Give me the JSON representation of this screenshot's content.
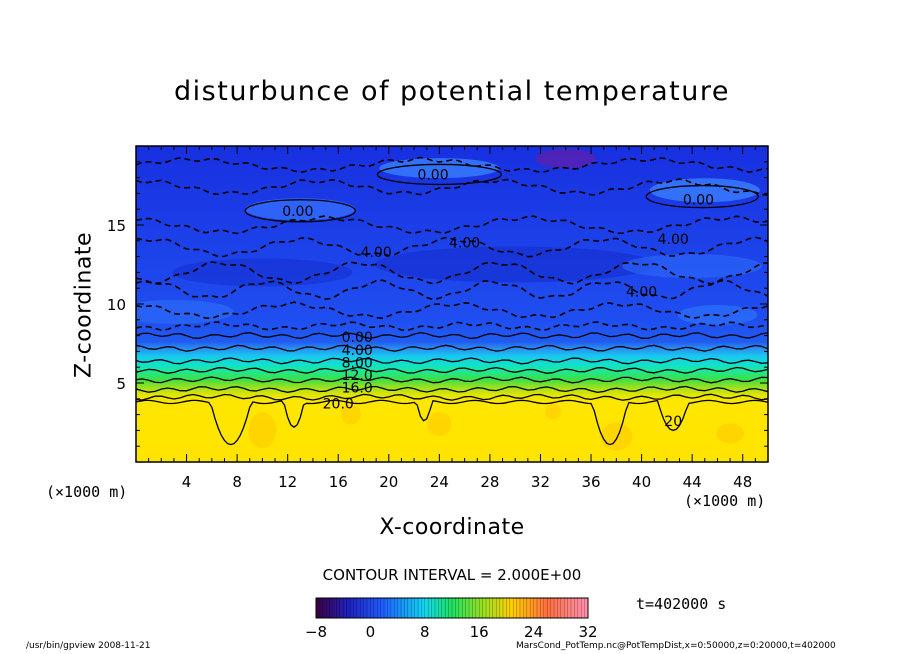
{
  "chart_data": {
    "type": "heatmap",
    "title": "disturbunce of potential temperature",
    "xlabel": "X-coordinate",
    "ylabel": "Z-coordinate",
    "x_unit": "(×1000 m)",
    "z_unit": "(×1000 m)",
    "xlim": [
      0,
      50
    ],
    "ylim": [
      0,
      20
    ],
    "x_ticks": [
      4,
      8,
      12,
      16,
      20,
      24,
      28,
      32,
      36,
      40,
      44,
      48
    ],
    "y_ticks": [
      5,
      10,
      15
    ],
    "contour_interval_text": "CONTOUR INTERVAL = 2.000E+00",
    "contour_labels": [
      {
        "text": "0.00",
        "x": 23.5,
        "z": 18.2
      },
      {
        "text": "0.00",
        "x": 12.8,
        "z": 15.9
      },
      {
        "text": "0.00",
        "x": 44.5,
        "z": 16.6
      },
      {
        "text": "4.00",
        "x": 19.0,
        "z": 13.3
      },
      {
        "text": "4.00",
        "x": 26.0,
        "z": 13.9
      },
      {
        "text": "4.00",
        "x": 42.5,
        "z": 14.1
      },
      {
        "text": "4.00",
        "x": 40.0,
        "z": 10.8
      },
      {
        "text": "0.00",
        "x": 17.5,
        "z": 7.9
      },
      {
        "text": "4.00",
        "x": 17.5,
        "z": 7.1
      },
      {
        "text": "8.00",
        "x": 17.5,
        "z": 6.3
      },
      {
        "text": "12.0",
        "x": 17.5,
        "z": 5.5
      },
      {
        "text": "16.0",
        "x": 17.5,
        "z": 4.7
      },
      {
        "text": "20.0",
        "x": 16.0,
        "z": 3.7
      },
      {
        "text": "20",
        "x": 42.5,
        "z": 2.6
      }
    ],
    "colorbar": {
      "min": -8,
      "max": 32,
      "tick_labels": [
        "−8",
        "0",
        "8",
        "16",
        "24",
        "32"
      ],
      "tick_values": [
        -8,
        0,
        8,
        16,
        24,
        32
      ]
    },
    "time_label": "t=402000 s",
    "grid": false
  },
  "footer": {
    "left": "/usr/bin/gpview  2008-11-21",
    "right": "MarsCond_PotTemp.nc@PotTempDist,x=0:50000,z=0:20000,t=402000"
  },
  "colors": {
    "upper_blue": "#1a3cf0",
    "mid_blue": "#1e5cf2",
    "cyan": "#10d8e8",
    "green": "#30e070",
    "warm_yellow": "#ffe600"
  }
}
